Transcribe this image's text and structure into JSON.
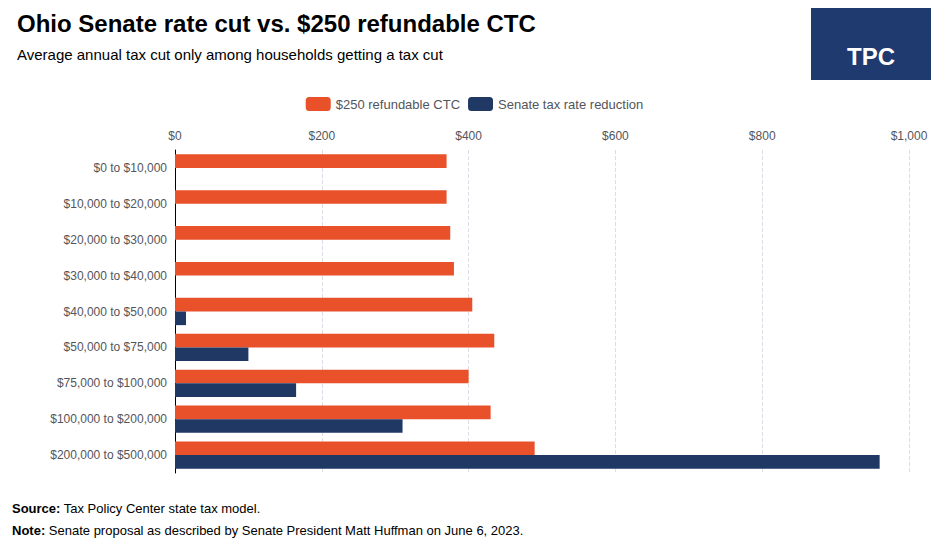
{
  "chart_data": {
    "type": "bar",
    "orientation": "horizontal",
    "title": "Ohio Senate rate cut vs. $250 refundable CTC",
    "subtitle": "Average annual tax cut only among households getting a tax cut",
    "categories": [
      "$0 to $10,000",
      "$10,000 to $20,000",
      "$20,000 to $30,000",
      "$30,000 to $40,000",
      "$40,000 to $50,000",
      "$50,000 to $75,000",
      "$75,000 to $100,000",
      "$100,000 to $200,000",
      "$200,000 to $500,000"
    ],
    "series": [
      {
        "name": "$250 refundable CTC",
        "color": "#E8512A",
        "values": [
          370,
          370,
          375,
          380,
          405,
          435,
          400,
          430,
          490
        ]
      },
      {
        "name": "Senate tax rate reduction",
        "color": "#1F3864",
        "values": [
          0,
          0,
          0,
          0,
          15,
          100,
          165,
          310,
          960
        ]
      }
    ],
    "xlim": [
      0,
      1000
    ],
    "xticks": [
      {
        "value": 0,
        "label": "$0"
      },
      {
        "value": 200,
        "label": "$200"
      },
      {
        "value": 400,
        "label": "$400"
      },
      {
        "value": 600,
        "label": "$600"
      },
      {
        "value": 800,
        "label": "$800"
      },
      {
        "value": 1000,
        "label": "$1,000"
      }
    ],
    "grid": true,
    "legend": "top",
    "footnotes": [
      "Source: Tax Policy Center state tax model.",
      "Note: Senate proposal as described by Senate President Matt Huffman on June 6, 2023."
    ],
    "logo_text": "TPC"
  }
}
